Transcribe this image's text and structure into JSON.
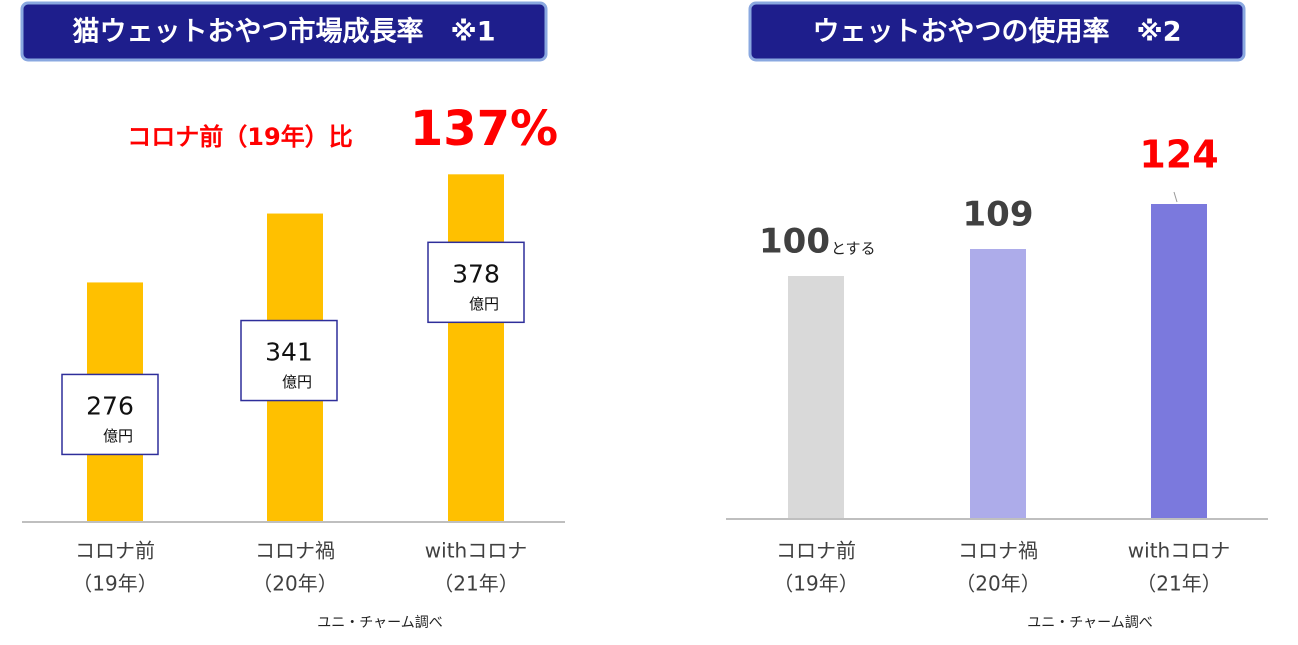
{
  "chart_data": [
    {
      "type": "bar",
      "title": "猫ウェットおやつ市場成長率　※1",
      "categories": [
        "コロナ前",
        "コロナ禍",
        "withコロナ"
      ],
      "category_years": [
        "（19年）",
        "（20年）",
        "（21年）"
      ],
      "values": [
        276,
        341,
        378
      ],
      "value_unit": "億円",
      "color": "#ffc000",
      "ylim": [
        50,
        400
      ],
      "annotation": "コロナ前（19年）比",
      "highlight": "137%",
      "source": "ユニ・チャーム調べ"
    },
    {
      "type": "bar",
      "title": "ウェットおやつの使用率　※2",
      "categories": [
        "コロナ前",
        "コロナ禍",
        "withコロナ"
      ],
      "category_years": [
        "（19年）",
        "（20年）",
        "（21年）"
      ],
      "values": [
        100,
        109,
        124
      ],
      "base_note": "とする",
      "colors": [
        "#d9d9d9",
        "#adacea",
        "#7b79dd"
      ],
      "label_colors": [
        "#404040",
        "#404040",
        "#ff0000"
      ],
      "ylim": [
        19,
        130
      ],
      "source": "ユニ・チャーム調べ"
    }
  ]
}
